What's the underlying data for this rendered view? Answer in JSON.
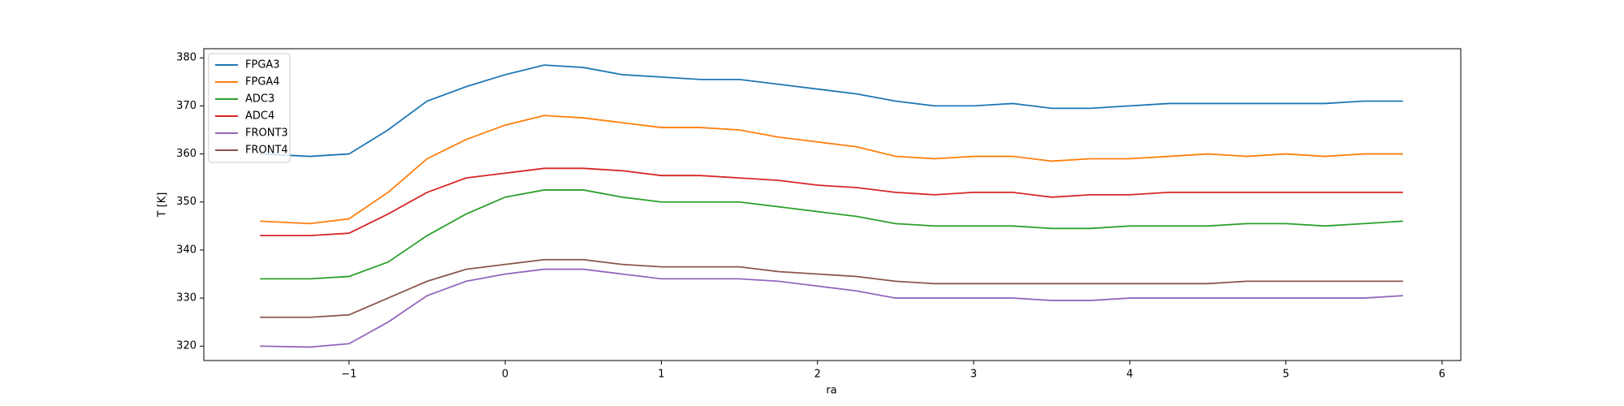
{
  "chart_data": {
    "type": "line",
    "xlabel": "ra",
    "ylabel": "T [K]",
    "x": [
      -1.57,
      -1.25,
      -1.0,
      -0.75,
      -0.5,
      -0.25,
      0,
      0.25,
      0.5,
      0.75,
      1.0,
      1.25,
      1.5,
      1.75,
      2.0,
      2.25,
      2.5,
      2.75,
      3.0,
      3.25,
      3.5,
      3.75,
      4.0,
      4.25,
      4.5,
      4.75,
      5.0,
      5.25,
      5.5,
      5.75
    ],
    "series": [
      {
        "name": "FPGA3",
        "color": "#1f77b4",
        "values": [
          360,
          359.5,
          360,
          365,
          371,
          374,
          376.5,
          378.5,
          378,
          376.5,
          376,
          375.5,
          375.5,
          374.5,
          373.5,
          372.5,
          371,
          370,
          370,
          370.5,
          369.5,
          369.5,
          370,
          370.5,
          370.5,
          370.5,
          370.5,
          370.5,
          371,
          371
        ]
      },
      {
        "name": "FPGA4",
        "color": "#ff7f0e",
        "values": [
          346,
          345.5,
          346.5,
          352,
          359,
          363,
          366,
          368,
          367.5,
          366.5,
          365.5,
          365.5,
          365,
          363.5,
          362.5,
          361.5,
          359.5,
          359,
          359.5,
          359.5,
          358.5,
          359,
          359,
          359.5,
          360,
          359.5,
          360,
          359.5,
          360,
          360
        ]
      },
      {
        "name": "ADC3",
        "color": "#2ca02c",
        "values": [
          334,
          334,
          334.5,
          337.5,
          343,
          347.5,
          351,
          352.5,
          352.5,
          351,
          350,
          350,
          350,
          349,
          348,
          347,
          345.5,
          345,
          345,
          345,
          344.5,
          344.5,
          345,
          345,
          345,
          345.5,
          345.5,
          345,
          345.5,
          346
        ]
      },
      {
        "name": "ADC4",
        "color": "#d62728",
        "values": [
          343,
          343,
          343.5,
          347.5,
          352,
          355,
          356,
          357,
          357,
          356.5,
          355.5,
          355.5,
          355,
          354.5,
          353.5,
          353,
          352,
          351.5,
          352,
          352,
          351,
          351.5,
          351.5,
          352,
          352,
          352,
          352,
          352,
          352,
          352
        ]
      },
      {
        "name": "FRONT3",
        "color": "#9467bd",
        "values": [
          320,
          319.8,
          320.5,
          325,
          330.5,
          333.5,
          335,
          336,
          336,
          335,
          334,
          334,
          334,
          333.5,
          332.5,
          331.5,
          330,
          330,
          330,
          330,
          329.5,
          329.5,
          330,
          330,
          330,
          330,
          330,
          330,
          330,
          330.5
        ]
      },
      {
        "name": "FRONT4",
        "color": "#8c564b",
        "values": [
          326,
          326,
          326.5,
          330,
          333.5,
          336,
          337,
          338,
          338,
          337,
          336.5,
          336.5,
          336.5,
          335.5,
          335,
          334.5,
          333.5,
          333,
          333,
          333,
          333,
          333,
          333,
          333,
          333,
          333.5,
          333.5,
          333.5,
          333.5,
          333.5
        ]
      }
    ],
    "xlim": [
      -1.93,
      6.12
    ],
    "xticks": [
      {
        "value": -1,
        "label": "−1"
      },
      0,
      1,
      2,
      3,
      4,
      5,
      6
    ],
    "ylim": [
      317.0,
      381.9
    ],
    "yticks": [
      320,
      330,
      340,
      350,
      360,
      370,
      380
    ],
    "legend": "upper left"
  }
}
